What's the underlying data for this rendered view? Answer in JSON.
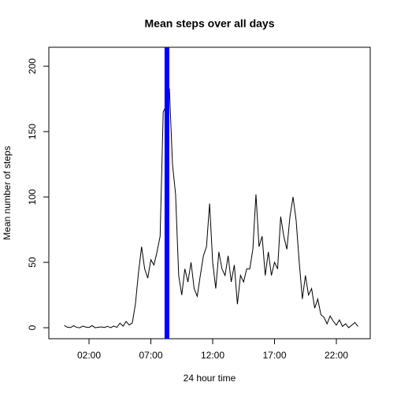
{
  "chart_data": {
    "type": "line",
    "title": "Mean steps over all days",
    "xlabel": "24 hour time",
    "ylabel": "Mean number of steps",
    "x": [
      0,
      0.25,
      0.5,
      0.75,
      1,
      1.25,
      1.5,
      1.75,
      2,
      2.25,
      2.5,
      2.75,
      3,
      3.25,
      3.5,
      3.75,
      4,
      4.25,
      4.5,
      4.75,
      5,
      5.25,
      5.5,
      5.75,
      6,
      6.25,
      6.5,
      6.75,
      7,
      7.25,
      7.5,
      7.75,
      8,
      8.25,
      8.5,
      8.75,
      9,
      9.25,
      9.5,
      9.75,
      10,
      10.25,
      10.5,
      10.75,
      11,
      11.25,
      11.5,
      11.75,
      12,
      12.25,
      12.5,
      12.75,
      13,
      13.25,
      13.5,
      13.75,
      14,
      14.25,
      14.5,
      14.75,
      15,
      15.25,
      15.5,
      15.75,
      16,
      16.25,
      16.5,
      16.75,
      17,
      17.25,
      17.5,
      17.75,
      18,
      18.25,
      18.5,
      18.75,
      19,
      19.25,
      19.5,
      19.75,
      20,
      20.25,
      20.5,
      20.75,
      21,
      21.25,
      21.5,
      21.75,
      22,
      22.25,
      22.5,
      22.75,
      23,
      23.25,
      23.5,
      23.75
    ],
    "values": [
      1.7,
      0.4,
      0.1,
      1.5,
      0.3,
      0,
      1.2,
      0.5,
      0.2,
      1.6,
      0,
      0.4,
      0.6,
      0.2,
      1.1,
      0,
      1.3,
      0.3,
      3.5,
      1.2,
      4.8,
      2.1,
      3.7,
      18,
      42,
      62,
      45,
      38,
      52,
      48,
      58,
      70,
      165,
      170,
      183,
      125,
      102,
      40,
      25,
      45,
      35,
      50,
      30,
      24,
      40,
      55,
      62,
      95,
      50,
      30,
      58,
      45,
      40,
      55,
      35,
      48,
      18,
      40,
      35,
      45,
      45,
      60,
      102,
      62,
      70,
      40,
      58,
      40,
      50,
      45,
      85,
      70,
      60,
      85,
      100,
      82,
      50,
      22,
      40,
      25,
      30,
      15,
      22,
      10,
      8,
      3,
      9,
      5,
      2,
      6,
      1,
      3,
      0,
      2,
      4,
      1
    ],
    "color": "#000000",
    "vline": {
      "value": 8.3,
      "color": "#0000ff"
    },
    "xlim": [
      -1.25,
      24.74
    ],
    "ylim": [
      -8.4,
      214.5
    ],
    "xticks": [
      {
        "value": 2,
        "label": "02:00"
      },
      {
        "value": 7,
        "label": "07:00"
      },
      {
        "value": 12,
        "label": "12:00"
      },
      {
        "value": 17,
        "label": "17:00"
      },
      {
        "value": 22,
        "label": "22:00"
      }
    ],
    "yticks": [
      0,
      50,
      100,
      150,
      200
    ]
  }
}
